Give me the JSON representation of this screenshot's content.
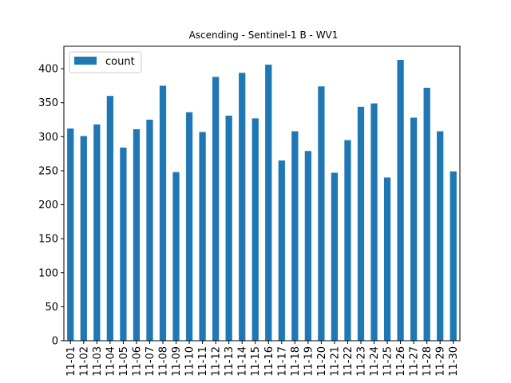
{
  "chart_data": {
    "type": "bar",
    "title": "Ascending - Sentinel-1 B - WV1",
    "xlabel": "",
    "ylabel": "",
    "categories": [
      "11-01",
      "11-02",
      "11-03",
      "11-04",
      "11-05",
      "11-06",
      "11-07",
      "11-08",
      "11-09",
      "11-10",
      "11-11",
      "11-12",
      "11-13",
      "11-14",
      "11-15",
      "11-16",
      "11-17",
      "11-18",
      "11-19",
      "11-20",
      "11-21",
      "11-22",
      "11-23",
      "11-24",
      "11-25",
      "11-26",
      "11-27",
      "11-28",
      "11-29",
      "11-30"
    ],
    "series": [
      {
        "name": "count",
        "color": "#1f77b4",
        "values": [
          312,
          301,
          318,
          360,
          284,
          311,
          325,
          375,
          248,
          336,
          307,
          388,
          331,
          394,
          327,
          406,
          265,
          308,
          279,
          374,
          247,
          295,
          344,
          349,
          240,
          413,
          328,
          372,
          308,
          249
        ]
      }
    ],
    "ylim": [
      0,
      433
    ],
    "yticks": [
      0,
      50,
      100,
      150,
      200,
      250,
      300,
      350,
      400
    ],
    "legend": "upper-left",
    "grid": false
  }
}
